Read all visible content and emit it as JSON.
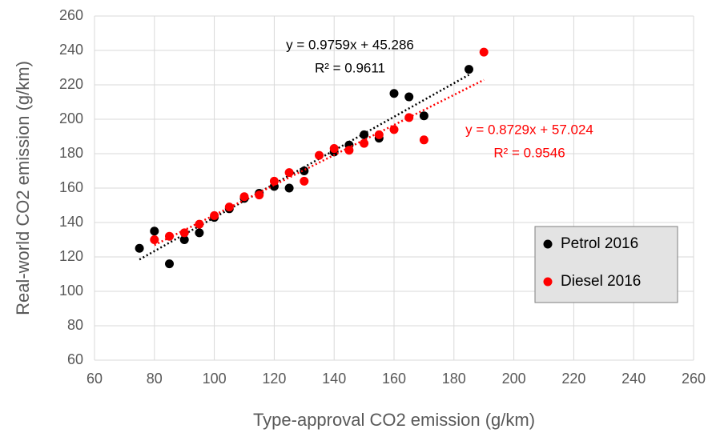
{
  "chart_data": {
    "type": "scatter",
    "x_label": "Type-approval CO2 emission  (g/km)",
    "y_label": "Real-world CO2 emission  (g/km)",
    "xlim": [
      60,
      260
    ],
    "xticks": [
      60,
      80,
      100,
      120,
      140,
      160,
      180,
      200,
      220,
      240,
      260
    ],
    "ylim": [
      60,
      260
    ],
    "yticks": [
      60,
      80,
      100,
      120,
      140,
      160,
      180,
      200,
      220,
      240,
      260
    ],
    "grid": true,
    "legend": "right",
    "series": [
      {
        "name": "Petrol 2016",
        "color": "#000000",
        "x": [
          75,
          80,
          85,
          90,
          95,
          100,
          105,
          110,
          115,
          120,
          125,
          130,
          140,
          145,
          150,
          155,
          160,
          165,
          170,
          185
        ],
        "values": [
          125,
          135,
          116,
          130,
          134,
          143,
          148,
          154,
          157,
          161,
          160,
          170,
          181,
          185,
          191,
          189,
          215,
          213,
          202,
          229
        ],
        "trendline": {
          "slope": 0.9759,
          "intercept": 45.286,
          "equation": "y = 0.9759x + 45.286",
          "r2": "R² = 0.9611"
        }
      },
      {
        "name": "Diesel 2016",
        "color": "#ff0000",
        "x": [
          80,
          85,
          90,
          95,
          100,
          105,
          110,
          115,
          120,
          125,
          130,
          135,
          140,
          145,
          150,
          155,
          160,
          165,
          170,
          190
        ],
        "values": [
          130,
          132,
          134,
          139,
          144,
          149,
          155,
          156,
          164,
          169,
          164,
          179,
          183,
          182,
          186,
          191,
          194,
          201,
          188,
          239
        ],
        "trendline": {
          "slope": 0.8729,
          "intercept": 57.024,
          "equation": "y = 0.8729x + 57.024",
          "r2": "R² = 0.9546"
        }
      }
    ]
  }
}
